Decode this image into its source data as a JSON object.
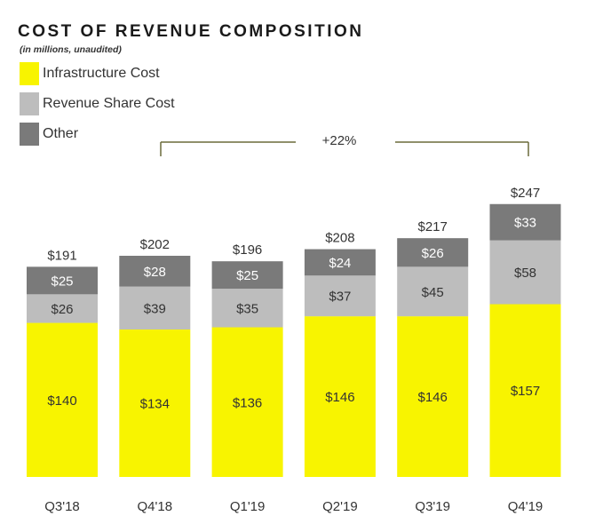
{
  "title": "COST OF REVENUE COMPOSITION",
  "subtitle": "(in millions, unaudited)",
  "legend": [
    {
      "label": "Infrastructure Cost",
      "color": "#f8f400"
    },
    {
      "label": "Revenue Share Cost",
      "color": "#bdbdbd"
    },
    {
      "label": "Other",
      "color": "#7a7a7a"
    }
  ],
  "growth_annotation": "+22%",
  "chart_data": {
    "type": "bar",
    "stacked": true,
    "title": "COST OF REVENUE COMPOSITION",
    "subtitle": "(in millions, unaudited)",
    "categories": [
      "Q3'18",
      "Q4'18",
      "Q1'19",
      "Q2'19",
      "Q3'19",
      "Q4'19"
    ],
    "series": [
      {
        "name": "Infrastructure Cost",
        "color": "#f8f400",
        "values": [
          140,
          134,
          136,
          146,
          146,
          157
        ],
        "labels": [
          "$140",
          "$134",
          "$136",
          "$146",
          "$146",
          "$157"
        ]
      },
      {
        "name": "Revenue Share Cost",
        "color": "#bdbdbd",
        "values": [
          26,
          39,
          35,
          37,
          45,
          58
        ],
        "labels": [
          "$26",
          "$39",
          "$35",
          "$37",
          "$45",
          "$58"
        ]
      },
      {
        "name": "Other",
        "color": "#7a7a7a",
        "values": [
          25,
          28,
          25,
          24,
          26,
          33
        ],
        "labels": [
          "$25",
          "$28",
          "$25",
          "$24",
          "$26",
          "$33"
        ]
      }
    ],
    "totals": [
      191,
      202,
      196,
      208,
      217,
      247
    ],
    "total_labels": [
      "$191",
      "$202",
      "$196",
      "$208",
      "$217",
      "$247"
    ],
    "ylim": [
      0,
      247
    ],
    "grid": false,
    "legend_position": "top-left",
    "annotation": "+22%"
  }
}
